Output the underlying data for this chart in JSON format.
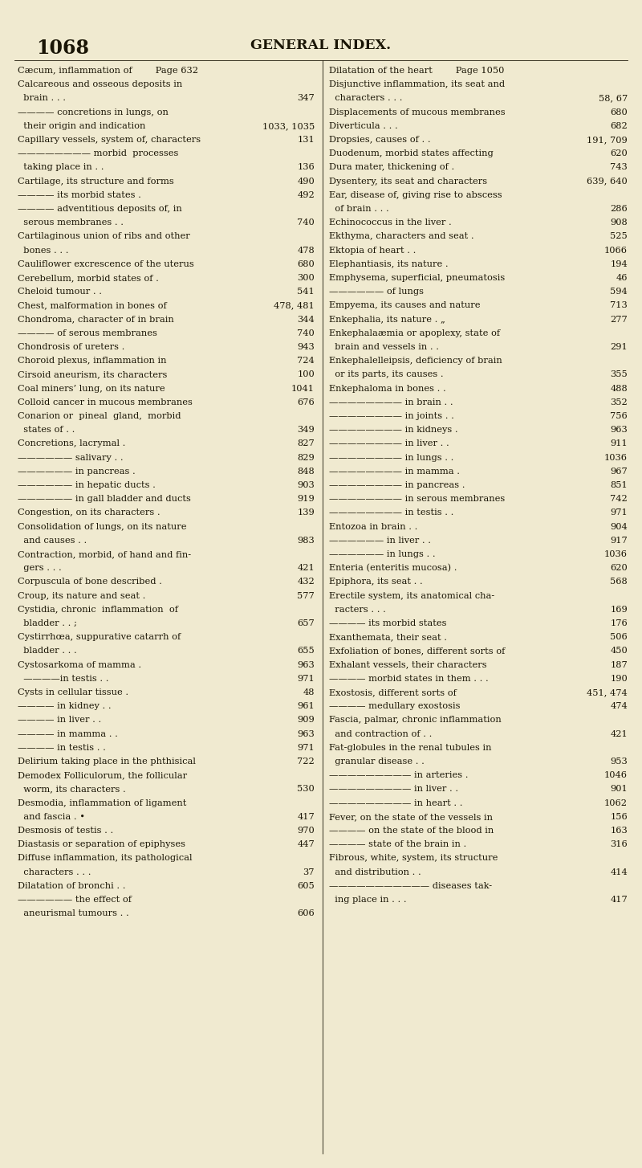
{
  "page_number": "1068",
  "header": "GENERAL INDEX.",
  "bg_color": "#f0ead0",
  "text_color": "#1a1505",
  "fig_width": 8.0,
  "fig_height": 14.54,
  "dpi": 100,
  "left_column": [
    [
      "Cæcum, inflammation of        Page 632",
      ""
    ],
    [
      "Calcareous and osseous deposits in",
      ""
    ],
    [
      "  brain . . .",
      "347"
    ],
    [
      "———— concretions in lungs, on",
      ""
    ],
    [
      "  their origin and indication",
      "1033, 1035"
    ],
    [
      "Capillary vessels, system of, characters",
      "131"
    ],
    [
      "———————— morbid  processes",
      ""
    ],
    [
      "  taking place in . .",
      "136"
    ],
    [
      "Cartilage, its structure and forms",
      "490"
    ],
    [
      "———— its morbid states .",
      "492"
    ],
    [
      "———— adventitious deposits of, in",
      ""
    ],
    [
      "  serous membranes . .",
      "740"
    ],
    [
      "Cartilaginous union of ribs and other",
      ""
    ],
    [
      "  bones . . .",
      "478"
    ],
    [
      "Cauliflower excrescence of the uterus",
      "680"
    ],
    [
      "Cerebellum, morbid states of .",
      "300"
    ],
    [
      "Cheloid tumour . .",
      "541"
    ],
    [
      "Chest, malformation in bones of",
      "478, 481"
    ],
    [
      "Chondroma, character of in brain",
      "344"
    ],
    [
      "———— of serous membranes",
      "740"
    ],
    [
      "Chondrosis of ureters .",
      "943"
    ],
    [
      "Choroid plexus, inflammation in",
      "724"
    ],
    [
      "Cirsoid aneurism, its characters",
      "100"
    ],
    [
      "Coal miners’ lung, on its nature",
      "1041"
    ],
    [
      "Colloid cancer in mucous membranes",
      "676"
    ],
    [
      "Conarion or  pineal  gland,  morbid",
      ""
    ],
    [
      "  states of . .",
      "349"
    ],
    [
      "Concretions, lacrymal .",
      "827"
    ],
    [
      "—————— salivary . .",
      "829"
    ],
    [
      "—————— in pancreas .",
      "848"
    ],
    [
      "—————— in hepatic ducts .",
      "903"
    ],
    [
      "—————— in gall bladder and ducts",
      "919"
    ],
    [
      "Congestion, on its characters .",
      "139"
    ],
    [
      "Consolidation of lungs, on its nature",
      ""
    ],
    [
      "  and causes . .",
      "983"
    ],
    [
      "Contraction, morbid, of hand and fin-",
      ""
    ],
    [
      "  gers . . .",
      "421"
    ],
    [
      "Corpuscula of bone described .",
      "432"
    ],
    [
      "Croup, its nature and seat .",
      "577"
    ],
    [
      "Cystidia, chronic  inflammation  of",
      ""
    ],
    [
      "  bladder . . ;",
      "657"
    ],
    [
      "Cystirrhœa, suppurative catarrh of",
      ""
    ],
    [
      "  bladder . . .",
      "655"
    ],
    [
      "Cystosarkoma of mamma .",
      "963"
    ],
    [
      "  ————in testis . .",
      "971"
    ],
    [
      "Cysts in cellular tissue .",
      "48"
    ],
    [
      "———— in kidney . .",
      "961"
    ],
    [
      "———— in liver . .",
      "909"
    ],
    [
      "———— in mamma . .",
      "963"
    ],
    [
      "———— in testis . .",
      "971"
    ],
    [
      "Delirium taking place in the phthisical",
      "722"
    ],
    [
      "Demodex Folliculorum, the follicular",
      ""
    ],
    [
      "  worm, its characters .",
      "530"
    ],
    [
      "Desmodia, inflammation of ligament",
      ""
    ],
    [
      "  and fascia . •",
      "417"
    ],
    [
      "Desmosis of testis . .",
      "970"
    ],
    [
      "Diastasis or separation of epiphyses",
      "447"
    ],
    [
      "Diffuse inflammation, its pathological",
      ""
    ],
    [
      "  characters . . .",
      "37"
    ],
    [
      "Dilatation of bronchi . .",
      "605"
    ],
    [
      "—————— the effect of",
      ""
    ],
    [
      "  aneurismal tumours . .",
      "606"
    ]
  ],
  "right_column": [
    [
      "Dilatation of the heart        Page 1050",
      ""
    ],
    [
      "Disjunctive inflammation, its seat and",
      ""
    ],
    [
      "  characters . . .",
      "58, 67"
    ],
    [
      "Displacements of mucous membranes",
      "680"
    ],
    [
      "Diverticula . . .",
      "682"
    ],
    [
      "Dropsies, causes of . .",
      "191, 709"
    ],
    [
      "Duodenum, morbid states affecting",
      "620"
    ],
    [
      "Dura mater, thickening of .",
      "743"
    ],
    [
      "Dysentery, its seat and characters",
      "639, 640"
    ],
    [
      "Ear, disease of, giving rise to abscess",
      ""
    ],
    [
      "  of brain . . .",
      "286"
    ],
    [
      "Echinococcus in the liver .",
      "908"
    ],
    [
      "Ekthyma, characters and seat .",
      "525"
    ],
    [
      "Ektopia of heart . .",
      "1066"
    ],
    [
      "Elephantiasis, its nature .",
      "194"
    ],
    [
      "Emphysema, superficial, ⁣pneumatosis",
      "46"
    ],
    [
      "—————— of lungs",
      "594"
    ],
    [
      "Empyema, its causes and nature",
      "713"
    ],
    [
      "Enkephalia, its nature . „",
      "277"
    ],
    [
      "Enkephalaæmia or apoplexy, state of",
      ""
    ],
    [
      "  brain and vessels in . .",
      "291"
    ],
    [
      "Enkephalelleipsis, deficiency of brain",
      ""
    ],
    [
      "  or its parts, its causes .",
      "355"
    ],
    [
      "Enkephaloma in bones . .",
      "488"
    ],
    [
      "———————— in brain . .",
      "352"
    ],
    [
      "———————— in joints . .",
      "756"
    ],
    [
      "———————— in kidneys .",
      "963"
    ],
    [
      "———————— in liver . .",
      "911"
    ],
    [
      "———————— in lungs . .",
      "1036"
    ],
    [
      "———————— in mamma .",
      "967"
    ],
    [
      "———————— in pancreas .",
      "851"
    ],
    [
      "———————— in serous membranes",
      "742"
    ],
    [
      "———————— in testis . .",
      "971"
    ],
    [
      "Entozoa in brain . .",
      "904"
    ],
    [
      "—————— in liver . .",
      "917"
    ],
    [
      "—————— in lungs . .",
      "1036"
    ],
    [
      "Enteria (enteritis mucosa) .",
      "620"
    ],
    [
      "Epiphora, its seat . .",
      "568"
    ],
    [
      "Erectile system, its anatomical cha-",
      ""
    ],
    [
      "  racters . . .",
      "169"
    ],
    [
      "———— its morbid states",
      "176"
    ],
    [
      "Exanthemata, their seat .",
      "506"
    ],
    [
      "Exfoliation of bones, different sorts of",
      "450"
    ],
    [
      "Exhalant vessels, their characters",
      "187"
    ],
    [
      "———— morbid states in them . . .",
      "190"
    ],
    [
      "Exostosis, different sorts of",
      "451, 474"
    ],
    [
      "———— medullary exostosis",
      "474"
    ],
    [
      "Fascia, palmar, chronic inflammation",
      ""
    ],
    [
      "  and contraction of . .",
      "421"
    ],
    [
      "Fat-globules in the renal tubules in",
      ""
    ],
    [
      "  granular disease . .",
      "953"
    ],
    [
      "————————— in arteries .",
      "1046"
    ],
    [
      "————————— in liver . .",
      "901"
    ],
    [
      "————————— in heart . .",
      "1062"
    ],
    [
      "Fever, on the state of the vessels in",
      "156"
    ],
    [
      "———— on the state of the blood in",
      "163"
    ],
    [
      "———— state of the brain in .",
      "316"
    ],
    [
      "Fibrous, white, system, its structure",
      ""
    ],
    [
      "  and distribution . .",
      "414"
    ],
    [
      "——————————— diseases tak-",
      ""
    ],
    [
      "  ing place in . . .",
      "417"
    ]
  ]
}
